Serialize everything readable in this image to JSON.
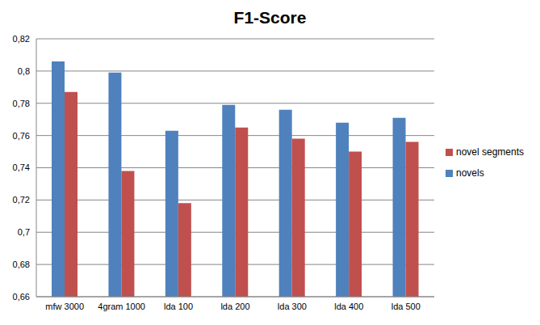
{
  "chart_data": {
    "type": "bar",
    "title": "F1-Score",
    "categories": [
      "mfw 3000",
      "4gram 1000",
      "lda 100",
      "lda 200",
      "lda 300",
      "lda 400",
      "lda 500"
    ],
    "series": [
      {
        "name": "novels",
        "color": "#4f81bd",
        "values": [
          0.806,
          0.799,
          0.763,
          0.779,
          0.776,
          0.768,
          0.771
        ]
      },
      {
        "name": "novel segments",
        "color": "#c0504d",
        "values": [
          0.787,
          0.738,
          0.718,
          0.765,
          0.758,
          0.75,
          0.756
        ]
      }
    ],
    "ylim": [
      0.66,
      0.82
    ],
    "yticks": [
      {
        "value": 0.66,
        "label": "0,66"
      },
      {
        "value": 0.68,
        "label": "0,68"
      },
      {
        "value": 0.7,
        "label": "0,7"
      },
      {
        "value": 0.72,
        "label": "0,72"
      },
      {
        "value": 0.74,
        "label": "0,74"
      },
      {
        "value": 0.76,
        "label": "0,76"
      },
      {
        "value": 0.78,
        "label": "0,78"
      },
      {
        "value": 0.8,
        "label": "0,8"
      },
      {
        "value": 0.82,
        "label": "0,82"
      }
    ],
    "grid": true,
    "legend": "right"
  }
}
